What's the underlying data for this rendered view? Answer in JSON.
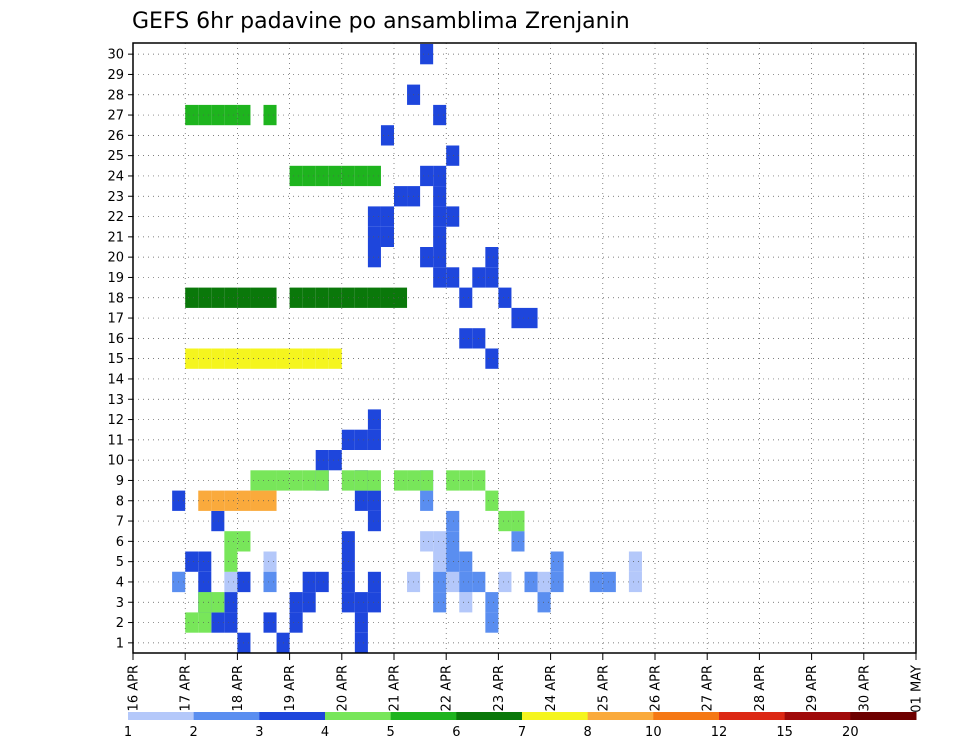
{
  "chart_data": {
    "type": "heatmap",
    "title": "GEFS 6hr padavine po ansamblima Zrenjanin",
    "y_categories": [
      "1",
      "2",
      "3",
      "4",
      "5",
      "6",
      "7",
      "8",
      "9",
      "10",
      "11",
      "12",
      "13",
      "14",
      "15",
      "16",
      "17",
      "18",
      "19",
      "20",
      "21",
      "22",
      "23",
      "24",
      "25",
      "26",
      "27",
      "28",
      "29",
      "30"
    ],
    "x_tick_labels": [
      "16 APR",
      "17 APR",
      "18 APR",
      "19 APR",
      "20 APR",
      "21 APR",
      "22 APR",
      "23 APR",
      "24 APR",
      "25 APR",
      "26 APR",
      "27 APR",
      "28 APR",
      "29 APR",
      "30 APR",
      "01 MAY"
    ],
    "time_steps_per_day": 4,
    "grid": true,
    "color_scale": {
      "levels": [
        "1",
        "2",
        "3",
        "4",
        "5",
        "6",
        "7",
        "8",
        "10",
        "12",
        "15",
        "20"
      ],
      "colors": [
        "#b4c8fa",
        "#5a8ef0",
        "#1e46dc",
        "#78e65a",
        "#1eb41e",
        "#0a780a",
        "#f5f51e",
        "#faaa3c",
        "#f57814",
        "#dc2814",
        "#a00a0a",
        "#6e0000"
      ]
    },
    "cells": [
      [
        0,
        3,
        4
      ],
      [
        0,
        7,
        4
      ],
      [
        0,
        8,
        4
      ],
      [
        0,
        10,
        5
      ],
      [
        0,
        16,
        4
      ],
      [
        0,
        21,
        4
      ],
      [
        0,
        22,
        6
      ],
      [
        0,
        23,
        5
      ],
      [
        0,
        23,
        6
      ],
      [
        0,
        24,
        4
      ],
      [
        0,
        24,
        5
      ],
      [
        0,
        25,
        3
      ],
      [
        0,
        25,
        4
      ],
      [
        0,
        28,
        4
      ],
      [
        0,
        30,
        4
      ],
      [
        0,
        31,
        4
      ],
      [
        0,
        38,
        4
      ],
      [
        0,
        38,
        5
      ],
      [
        1,
        3,
        4
      ],
      [
        1,
        10,
        4
      ],
      [
        1,
        22,
        8
      ],
      [
        1,
        22,
        9
      ],
      [
        1,
        23,
        3
      ],
      [
        1,
        23,
        4
      ],
      [
        1,
        24,
        5
      ],
      [
        1,
        24,
        6
      ],
      [
        1,
        24,
        7
      ],
      [
        1,
        25,
        4
      ],
      [
        1,
        25,
        5
      ],
      [
        1,
        26,
        4
      ],
      [
        1,
        27,
        2
      ],
      [
        1,
        27,
        3
      ],
      [
        1,
        29,
        6
      ],
      [
        1,
        29,
        7
      ],
      [
        1,
        30,
        4
      ],
      [
        1,
        31,
        3
      ],
      [
        1,
        32,
        4
      ],
      [
        1,
        32,
        5
      ],
      [
        1,
        35,
        4
      ],
      [
        1,
        36,
        4
      ],
      [
        2,
        3,
        8
      ],
      [
        2,
        4,
        5
      ],
      [
        2,
        5,
        5
      ],
      [
        2,
        5,
        4
      ],
      [
        2,
        5,
        3
      ],
      [
        2,
        6,
        7
      ],
      [
        2,
        6,
        2
      ],
      [
        2,
        7,
        2
      ],
      [
        2,
        7,
        3
      ],
      [
        2,
        8,
        1
      ],
      [
        2,
        8,
        4
      ],
      [
        2,
        10,
        2
      ],
      [
        2,
        11,
        1
      ],
      [
        2,
        12,
        2
      ],
      [
        2,
        12,
        3
      ],
      [
        2,
        13,
        3
      ],
      [
        2,
        13,
        4
      ],
      [
        2,
        14,
        4
      ],
      [
        2,
        14,
        9
      ],
      [
        2,
        14,
        10
      ],
      [
        2,
        15,
        10
      ],
      [
        2,
        16,
        3
      ],
      [
        2,
        16,
        4
      ],
      [
        2,
        16,
        5
      ],
      [
        2,
        16,
        6
      ],
      [
        2,
        16,
        11
      ],
      [
        2,
        17,
        1
      ],
      [
        2,
        17,
        2
      ],
      [
        2,
        17,
        3
      ],
      [
        2,
        17,
        8
      ],
      [
        2,
        17,
        9
      ],
      [
        2,
        17,
        11
      ],
      [
        2,
        18,
        3
      ],
      [
        2,
        18,
        4
      ],
      [
        2,
        18,
        7
      ],
      [
        2,
        18,
        8
      ],
      [
        2,
        18,
        11
      ],
      [
        2,
        18,
        12
      ],
      [
        2,
        18,
        20
      ],
      [
        2,
        18,
        21
      ],
      [
        2,
        18,
        22
      ],
      [
        2,
        19,
        21
      ],
      [
        2,
        19,
        22
      ],
      [
        2,
        19,
        26
      ],
      [
        2,
        20,
        23
      ],
      [
        2,
        21,
        23
      ],
      [
        2,
        21,
        28
      ],
      [
        2,
        22,
        20
      ],
      [
        2,
        22,
        24
      ],
      [
        2,
        22,
        30
      ],
      [
        2,
        23,
        19
      ],
      [
        2,
        23,
        20
      ],
      [
        2,
        23,
        21
      ],
      [
        2,
        23,
        22
      ],
      [
        2,
        23,
        23
      ],
      [
        2,
        23,
        24
      ],
      [
        2,
        23,
        27
      ],
      [
        2,
        24,
        19
      ],
      [
        2,
        24,
        22
      ],
      [
        2,
        24,
        25
      ],
      [
        2,
        25,
        16
      ],
      [
        2,
        25,
        18
      ],
      [
        2,
        26,
        16
      ],
      [
        2,
        26,
        19
      ],
      [
        2,
        27,
        15
      ],
      [
        2,
        27,
        19
      ],
      [
        2,
        27,
        20
      ],
      [
        2,
        28,
        18
      ],
      [
        2,
        29,
        17
      ],
      [
        2,
        30,
        17
      ],
      [
        3,
        4,
        2
      ],
      [
        3,
        5,
        2
      ],
      [
        3,
        5,
        3
      ],
      [
        3,
        6,
        3
      ],
      [
        3,
        7,
        5
      ],
      [
        3,
        7,
        6
      ],
      [
        3,
        8,
        6
      ],
      [
        3,
        9,
        9
      ],
      [
        3,
        10,
        9
      ],
      [
        3,
        11,
        9
      ],
      [
        3,
        12,
        9
      ],
      [
        3,
        13,
        9
      ],
      [
        3,
        14,
        9
      ],
      [
        3,
        16,
        9
      ],
      [
        3,
        17,
        9
      ],
      [
        3,
        18,
        9
      ],
      [
        3,
        20,
        9
      ],
      [
        3,
        21,
        9
      ],
      [
        3,
        22,
        9
      ],
      [
        3,
        24,
        9
      ],
      [
        3,
        25,
        9
      ],
      [
        3,
        26,
        9
      ],
      [
        3,
        27,
        8
      ],
      [
        3,
        28,
        7
      ],
      [
        3,
        29,
        7
      ],
      [
        4,
        4,
        27
      ],
      [
        4,
        5,
        27
      ],
      [
        4,
        6,
        27
      ],
      [
        4,
        7,
        27
      ],
      [
        4,
        8,
        27
      ],
      [
        4,
        10,
        27
      ],
      [
        4,
        12,
        24
      ],
      [
        4,
        13,
        24
      ],
      [
        4,
        14,
        24
      ],
      [
        4,
        15,
        24
      ],
      [
        4,
        16,
        24
      ],
      [
        4,
        17,
        24
      ],
      [
        4,
        18,
        24
      ],
      [
        5,
        4,
        18
      ],
      [
        5,
        5,
        18
      ],
      [
        5,
        6,
        18
      ],
      [
        5,
        7,
        18
      ],
      [
        5,
        8,
        18
      ],
      [
        5,
        9,
        18
      ],
      [
        5,
        10,
        18
      ],
      [
        5,
        12,
        18
      ],
      [
        5,
        13,
        18
      ],
      [
        5,
        14,
        18
      ],
      [
        5,
        15,
        18
      ],
      [
        5,
        16,
        18
      ],
      [
        5,
        17,
        18
      ],
      [
        5,
        18,
        18
      ],
      [
        5,
        19,
        18
      ],
      [
        5,
        20,
        18
      ],
      [
        6,
        4,
        15
      ],
      [
        6,
        5,
        15
      ],
      [
        6,
        6,
        15
      ],
      [
        6,
        7,
        15
      ],
      [
        6,
        8,
        15
      ],
      [
        6,
        9,
        15
      ],
      [
        6,
        10,
        15
      ],
      [
        6,
        11,
        15
      ],
      [
        6,
        12,
        15
      ],
      [
        6,
        13,
        15
      ],
      [
        6,
        14,
        15
      ],
      [
        6,
        15,
        15
      ],
      [
        7,
        5,
        8
      ],
      [
        7,
        6,
        8
      ],
      [
        7,
        7,
        8
      ],
      [
        7,
        8,
        8
      ],
      [
        7,
        9,
        8
      ],
      [
        7,
        10,
        8
      ]
    ]
  }
}
